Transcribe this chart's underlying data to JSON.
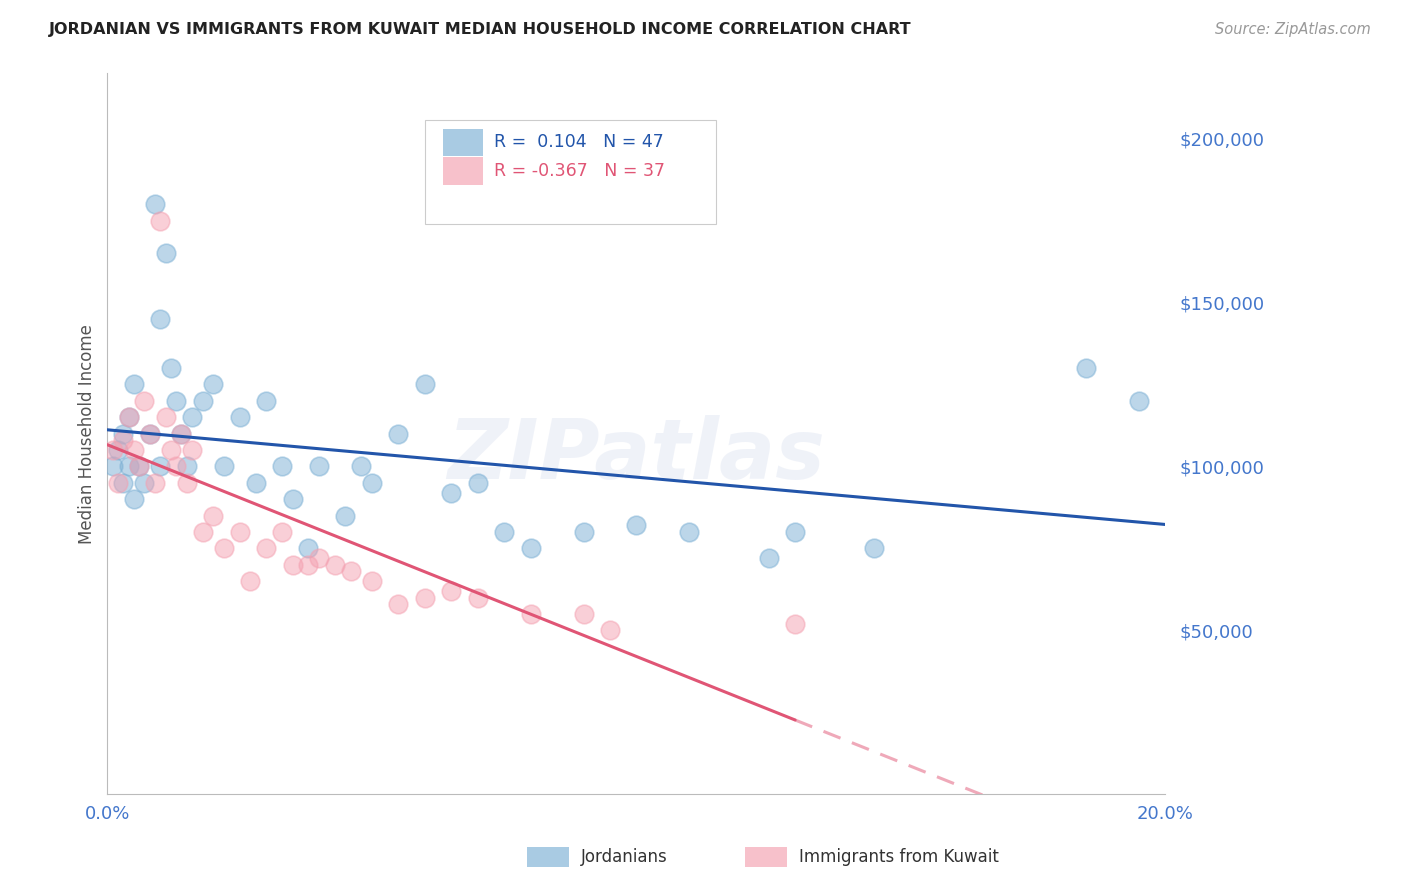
{
  "title": "JORDANIAN VS IMMIGRANTS FROM KUWAIT MEDIAN HOUSEHOLD INCOME CORRELATION CHART",
  "source": "Source: ZipAtlas.com",
  "ylabel": "Median Household Income",
  "xlim": [
    0.0,
    0.2
  ],
  "ylim": [
    0,
    220000
  ],
  "yticks": [
    0,
    50000,
    100000,
    150000,
    200000
  ],
  "ytick_labels": [
    "",
    "$50,000",
    "$100,000",
    "$150,000",
    "$200,000"
  ],
  "xticks": [
    0.0,
    0.05,
    0.1,
    0.15,
    0.2
  ],
  "xtick_labels": [
    "0.0%",
    "",
    "",
    "",
    "20.0%"
  ],
  "watermark": "ZIPatlas",
  "blue_color": "#7BAFD4",
  "pink_color": "#F4A0B0",
  "blue_line_color": "#2255AA",
  "pink_line_color": "#E05575",
  "axis_label_color": "#4477CC",
  "grid_color": "#CCCCDD",
  "jordanians_x": [
    0.001,
    0.002,
    0.003,
    0.003,
    0.004,
    0.004,
    0.005,
    0.005,
    0.006,
    0.007,
    0.008,
    0.009,
    0.01,
    0.01,
    0.011,
    0.012,
    0.013,
    0.014,
    0.015,
    0.016,
    0.018,
    0.02,
    0.022,
    0.025,
    0.028,
    0.03,
    0.033,
    0.035,
    0.038,
    0.04,
    0.045,
    0.048,
    0.05,
    0.055,
    0.06,
    0.065,
    0.07,
    0.075,
    0.08,
    0.09,
    0.1,
    0.11,
    0.125,
    0.13,
    0.145,
    0.185,
    0.195
  ],
  "jordanians_y": [
    100000,
    105000,
    95000,
    110000,
    100000,
    115000,
    90000,
    125000,
    100000,
    95000,
    110000,
    180000,
    145000,
    100000,
    165000,
    130000,
    120000,
    110000,
    100000,
    115000,
    120000,
    125000,
    100000,
    115000,
    95000,
    120000,
    100000,
    90000,
    75000,
    100000,
    85000,
    100000,
    95000,
    110000,
    125000,
    92000,
    95000,
    80000,
    75000,
    80000,
    82000,
    80000,
    72000,
    80000,
    75000,
    130000,
    120000
  ],
  "kuwait_x": [
    0.001,
    0.002,
    0.003,
    0.004,
    0.005,
    0.006,
    0.007,
    0.008,
    0.009,
    0.01,
    0.011,
    0.012,
    0.013,
    0.014,
    0.015,
    0.016,
    0.018,
    0.02,
    0.022,
    0.025,
    0.027,
    0.03,
    0.033,
    0.035,
    0.038,
    0.04,
    0.043,
    0.046,
    0.05,
    0.055,
    0.06,
    0.065,
    0.07,
    0.08,
    0.09,
    0.095,
    0.13
  ],
  "kuwait_y": [
    105000,
    95000,
    108000,
    115000,
    105000,
    100000,
    120000,
    110000,
    95000,
    175000,
    115000,
    105000,
    100000,
    110000,
    95000,
    105000,
    80000,
    85000,
    75000,
    80000,
    65000,
    75000,
    80000,
    70000,
    70000,
    72000,
    70000,
    68000,
    65000,
    58000,
    60000,
    62000,
    60000,
    55000,
    55000,
    50000,
    52000
  ]
}
